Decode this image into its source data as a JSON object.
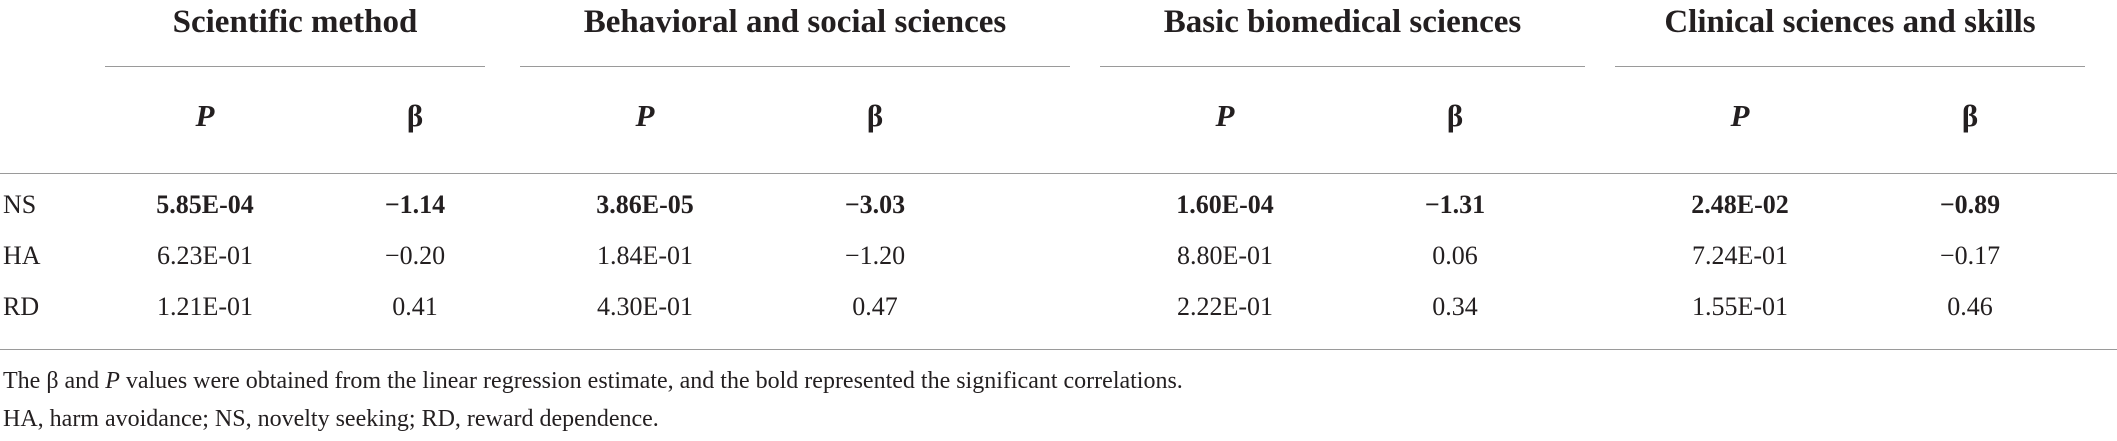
{
  "table": {
    "groups": [
      {
        "title": "Scientific method",
        "p_label": "P",
        "beta_label": "β"
      },
      {
        "title": "Behavioral and social sciences",
        "p_label": "P",
        "beta_label": "β"
      },
      {
        "title": "Basic biomedical sciences",
        "p_label": "P",
        "beta_label": "β"
      },
      {
        "title": "Clinical sciences and skills",
        "p_label": "P",
        "beta_label": "β"
      }
    ],
    "rows": [
      {
        "label": "NS",
        "bold": true,
        "cells": [
          "5.85E-04",
          "−1.14",
          "3.86E-05",
          "−3.03",
          "1.60E-04",
          "−1.31",
          "2.48E-02",
          "−0.89"
        ]
      },
      {
        "label": "HA",
        "bold": false,
        "cells": [
          "6.23E-01",
          "−0.20",
          "1.84E-01",
          "−1.20",
          "8.80E-01",
          "0.06",
          "7.24E-01",
          "−0.17"
        ]
      },
      {
        "label": "RD",
        "bold": false,
        "cells": [
          "1.21E-01",
          "0.41",
          "4.30E-01",
          "0.47",
          "2.22E-01",
          "0.34",
          "1.55E-01",
          "0.46"
        ]
      }
    ]
  },
  "footnotes": {
    "line1_a": "The β and ",
    "line1_p": "P",
    "line1_b": " values were obtained from the linear regression estimate, and the bold represented the significant correlations.",
    "line2": "HA, harm avoidance; NS, novelty seeking; RD, reward dependence."
  }
}
